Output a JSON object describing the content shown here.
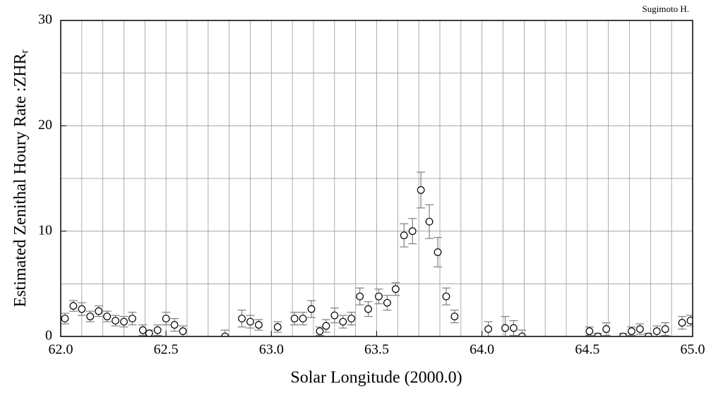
{
  "chart_data": {
    "type": "scatter",
    "annotation": "Sugimoto H.",
    "xlabel": "Solar Longitude (2000.0)",
    "ylabel": "Estimated Zenithal Houry Rate :ZHR",
    "ylabel_subscript": "r",
    "xlim": [
      62.0,
      65.0
    ],
    "ylim": [
      0,
      30
    ],
    "xticks": [
      {
        "value": 62.0,
        "label": "62.0"
      },
      {
        "value": 62.5,
        "label": "62.5"
      },
      {
        "value": 63.0,
        "label": "63.0"
      },
      {
        "value": 63.5,
        "label": "63.5"
      },
      {
        "value": 64.0,
        "label": "64.0"
      },
      {
        "value": 64.5,
        "label": "64.5"
      },
      {
        "value": 65.0,
        "label": "65.0"
      }
    ],
    "yticks": [
      0,
      10,
      20,
      30
    ],
    "grid": true,
    "xgrid_step": 0.1,
    "ygrid_step": 5,
    "marker_color": "#000000",
    "errorbar_color": "#808080",
    "x": [
      62.02,
      62.06,
      62.1,
      62.14,
      62.18,
      62.22,
      62.26,
      62.3,
      62.34,
      62.39,
      62.42,
      62.46,
      62.5,
      62.54,
      62.58,
      62.78,
      62.86,
      62.9,
      62.94,
      63.03,
      63.11,
      63.15,
      63.19,
      63.23,
      63.26,
      63.3,
      63.34,
      63.38,
      63.42,
      63.46,
      63.51,
      63.55,
      63.59,
      63.63,
      63.67,
      63.71,
      63.75,
      63.79,
      63.83,
      63.87,
      64.03,
      64.11,
      64.15,
      64.19,
      64.51,
      64.55,
      64.59,
      64.67,
      64.71,
      64.75,
      64.79,
      64.83,
      64.87,
      64.95,
      64.99
    ],
    "values": [
      1.7,
      2.9,
      2.6,
      1.9,
      2.4,
      1.9,
      1.5,
      1.4,
      1.7,
      0.6,
      0.3,
      0.6,
      1.7,
      1.1,
      0.5,
      0,
      1.7,
      1.4,
      1.1,
      0.9,
      1.7,
      1.7,
      2.6,
      0.5,
      1.0,
      2.0,
      1.4,
      1.7,
      3.8,
      2.6,
      3.8,
      3.2,
      4.5,
      9.6,
      10.0,
      13.9,
      10.9,
      8.0,
      3.8,
      1.9,
      0.7,
      0.8,
      0.8,
      0,
      0.5,
      0,
      0.7,
      0,
      0.5,
      0.7,
      0,
      0.5,
      0.7,
      1.3,
      1.5
    ],
    "errors": [
      0.5,
      0.5,
      0.6,
      0.5,
      0.5,
      0.5,
      0.5,
      0.5,
      0.6,
      0.5,
      0.3,
      0.5,
      0.6,
      0.6,
      0.5,
      0.6,
      0.8,
      0.6,
      0.5,
      0.5,
      0.6,
      0.6,
      0.8,
      0.4,
      0.6,
      0.7,
      0.6,
      0.6,
      0.8,
      0.7,
      0.7,
      0.7,
      0.6,
      1.1,
      1.2,
      1.7,
      1.6,
      1.4,
      0.8,
      0.6,
      0.7,
      1.1,
      0.7,
      0.6,
      0.4,
      0.3,
      0.6,
      0.3,
      0.4,
      0.5,
      0.3,
      0.5,
      0.6,
      0.6,
      0.5
    ]
  }
}
